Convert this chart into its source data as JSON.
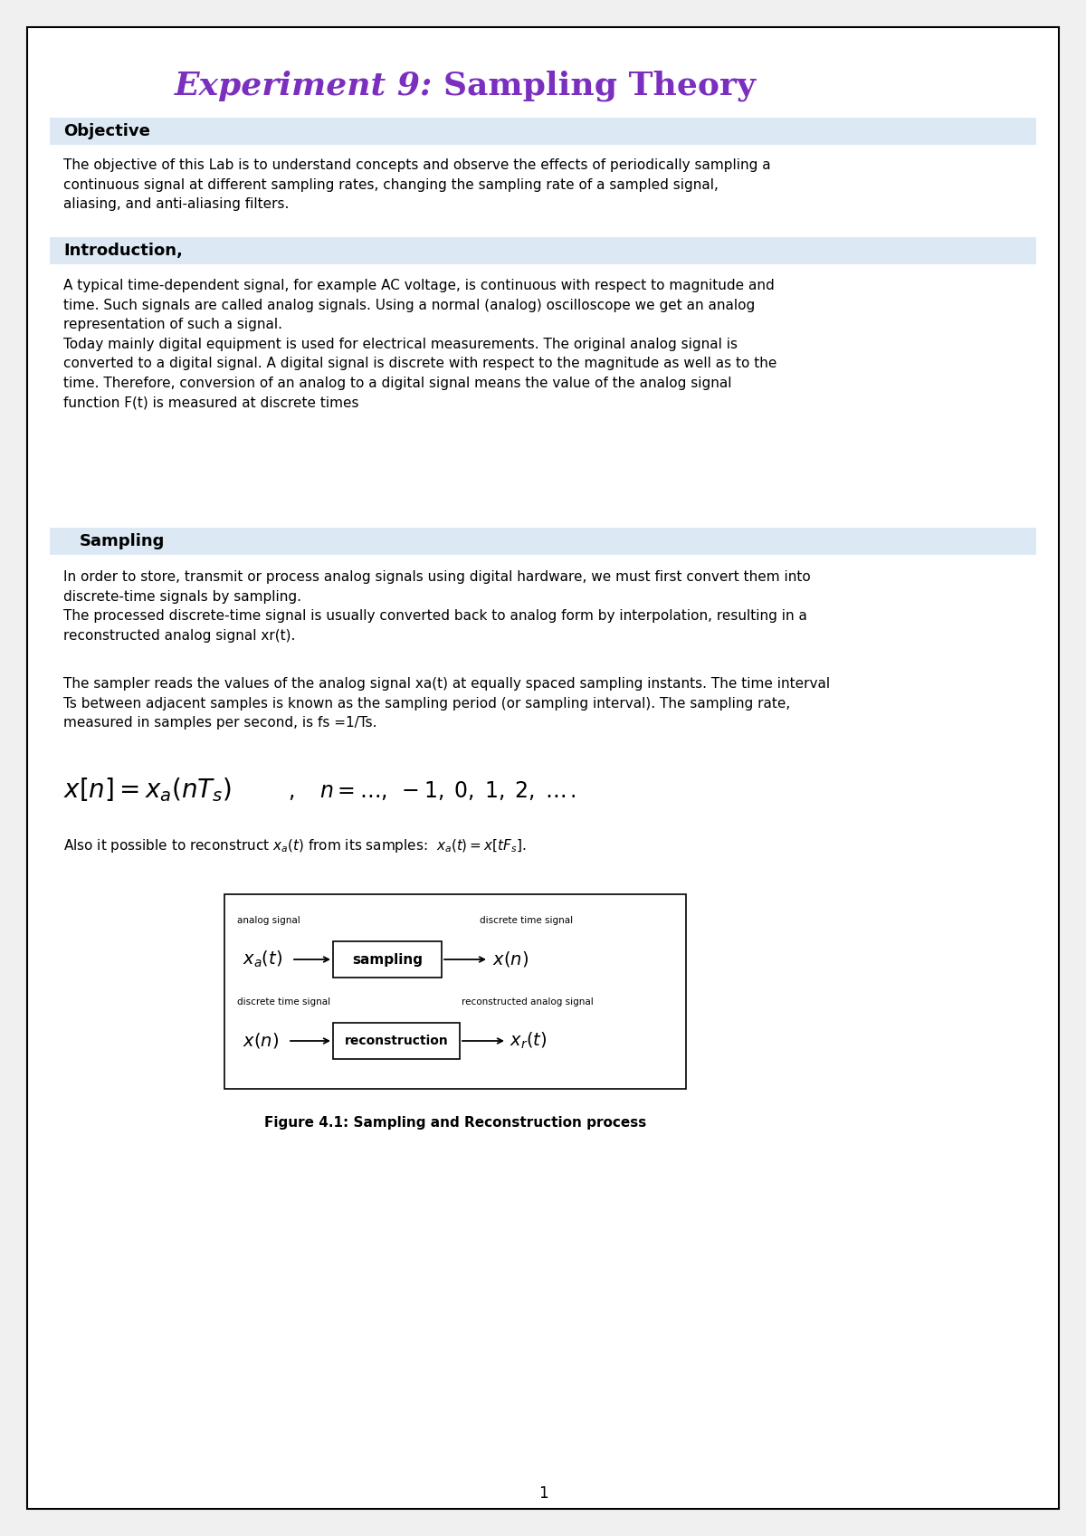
{
  "title_italic": "Experiment 9:",
  "title_normal": "Sampling Theory",
  "title_color": "#7B2FBE",
  "title_fontsize": 26,
  "page_bg": "#ffffff",
  "border_color": "#000000",
  "section_bg": "#dce9f5",
  "objective_text": "The objective of this Lab is to understand concepts and observe the effects of periodically sampling a\ncontinuous signal at different sampling rates, changing the sampling rate of a sampled signal,\naliasing, and anti-aliasing filters.",
  "intro_text1": "A typical time-dependent signal, for example AC voltage, is continuous with respect to magnitude and\ntime. Such signals are called analog signals. Using a normal (analog) oscilloscope we get an analog\nrepresentation of such a signal.\nToday mainly digital equipment is used for electrical measurements. The original analog signal is\nconverted to a digital signal. A digital signal is discrete with respect to the magnitude as well as to the\ntime. Therefore, conversion of an analog to a digital signal means the value of the analog signal\nfunction F(t) is measured at discrete times",
  "sampling_text1": "In order to store, transmit or process analog signals using digital hardware, we must first convert them into\ndiscrete-time signals by sampling.\nThe processed discrete-time signal is usually converted back to analog form by interpolation, resulting in a\nreconstructed analog signal xr(t).",
  "sampling_text2": "The sampler reads the values of the analog signal xa(t) at equally spaced sampling instants. The time interval\nTs between adjacent samples is known as the sampling period (or sampling interval). The sampling rate,\nmeasured in samples per second, is fs =1/Ts.",
  "figure_caption": "Figure 4.1: Sampling and Reconstruction process",
  "page_number": "1"
}
